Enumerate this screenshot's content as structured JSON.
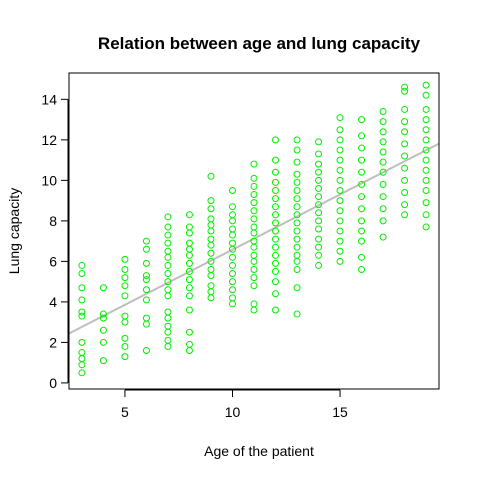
{
  "chart_data": {
    "type": "scatter",
    "title": "Relation between age and lung capacity",
    "xlabel": "Age of the patient",
    "ylabel": "Lung capacity",
    "xlim": [
      2.4,
      19.6
    ],
    "ylim": [
      -0.3,
      15.3
    ],
    "xticks": [
      5,
      10,
      15
    ],
    "yticks": [
      0,
      2,
      4,
      6,
      8,
      10,
      12,
      14
    ],
    "grid": false,
    "legend": "none",
    "point_color": "#00ee00",
    "line_color": "#bebebe",
    "regression_line": {
      "intercept": 1.13,
      "slope": 0.545
    },
    "points": [
      {
        "x": 3,
        "y": [
          0.5,
          0.9,
          1.2,
          1.5,
          2.0,
          3.3,
          3.5,
          4.1,
          4.7,
          5.4,
          5.8
        ]
      },
      {
        "x": 4,
        "y": [
          1.1,
          2.0,
          2.6,
          3.2,
          3.4,
          4.7
        ]
      },
      {
        "x": 5,
        "y": [
          1.3,
          1.8,
          2.2,
          3.0,
          3.3,
          4.3,
          4.8,
          5.2,
          5.6,
          6.1
        ]
      },
      {
        "x": 6,
        "y": [
          1.6,
          2.9,
          3.2,
          4.1,
          4.6,
          5.1,
          5.3,
          5.9,
          6.6,
          7.0
        ]
      },
      {
        "x": 7,
        "y": [
          1.8,
          2.1,
          2.5,
          2.8,
          3.2,
          3.5,
          4.3,
          4.6,
          5.0,
          5.4,
          5.8,
          6.2,
          6.5,
          6.9,
          7.3,
          7.7,
          8.2
        ]
      },
      {
        "x": 8,
        "y": [
          1.6,
          1.9,
          2.5,
          3.6,
          4.3,
          4.7,
          5.1,
          5.5,
          5.9,
          6.3,
          6.6,
          6.9,
          7.4,
          7.7,
          8.3
        ]
      },
      {
        "x": 9,
        "y": [
          4.2,
          4.5,
          4.8,
          5.3,
          5.6,
          6.0,
          6.4,
          6.8,
          7.1,
          7.5,
          7.8,
          8.1,
          8.6,
          9.0,
          10.2
        ]
      },
      {
        "x": 10,
        "y": [
          3.9,
          4.2,
          4.6,
          5.0,
          5.4,
          5.8,
          6.2,
          6.6,
          6.9,
          7.3,
          7.6,
          8.0,
          8.3,
          8.7,
          9.5
        ]
      },
      {
        "x": 11,
        "y": [
          3.6,
          3.9,
          4.8,
          5.2,
          5.6,
          6.0,
          6.3,
          6.7,
          7.0,
          7.4,
          7.7,
          8.1,
          8.5,
          8.9,
          9.3,
          9.7,
          10.1,
          10.8
        ]
      },
      {
        "x": 12,
        "y": [
          3.6,
          4.4,
          5.0,
          5.5,
          5.9,
          6.3,
          6.7,
          7.1,
          7.5,
          7.9,
          8.3,
          8.7,
          9.1,
          9.5,
          9.9,
          10.4,
          11.0,
          12.0
        ]
      },
      {
        "x": 13,
        "y": [
          3.4,
          4.7,
          5.6,
          6.0,
          6.3,
          6.7,
          7.1,
          7.5,
          7.9,
          8.3,
          8.7,
          9.1,
          9.5,
          9.9,
          10.3,
          10.9,
          11.5,
          12.0
        ]
      },
      {
        "x": 14,
        "y": [
          5.8,
          6.3,
          6.7,
          7.1,
          7.6,
          8.0,
          8.4,
          8.8,
          9.2,
          9.6,
          10.0,
          10.4,
          10.8,
          11.3,
          11.9
        ]
      },
      {
        "x": 15,
        "y": [
          6.0,
          6.5,
          7.0,
          7.5,
          8.0,
          8.5,
          9.0,
          9.5,
          10.0,
          10.5,
          11.0,
          11.5,
          12.0,
          12.5,
          13.1
        ]
      },
      {
        "x": 16,
        "y": [
          5.6,
          6.2,
          7.0,
          7.5,
          8.0,
          8.6,
          9.2,
          9.8,
          10.4,
          11.0,
          11.6,
          12.2,
          13.0
        ]
      },
      {
        "x": 17,
        "y": [
          7.2,
          8.0,
          8.6,
          9.2,
          9.8,
          10.4,
          10.9,
          11.4,
          11.9,
          12.4,
          12.9,
          13.4
        ]
      },
      {
        "x": 18,
        "y": [
          8.3,
          8.8,
          9.4,
          10.0,
          10.6,
          11.2,
          11.8,
          12.4,
          12.9,
          13.5,
          14.4,
          14.6
        ]
      },
      {
        "x": 19,
        "y": [
          7.7,
          8.3,
          8.9,
          9.5,
          10.0,
          10.5,
          11.0,
          11.5,
          12.0,
          12.5,
          13.0,
          13.5,
          14.2,
          14.7
        ]
      }
    ]
  }
}
